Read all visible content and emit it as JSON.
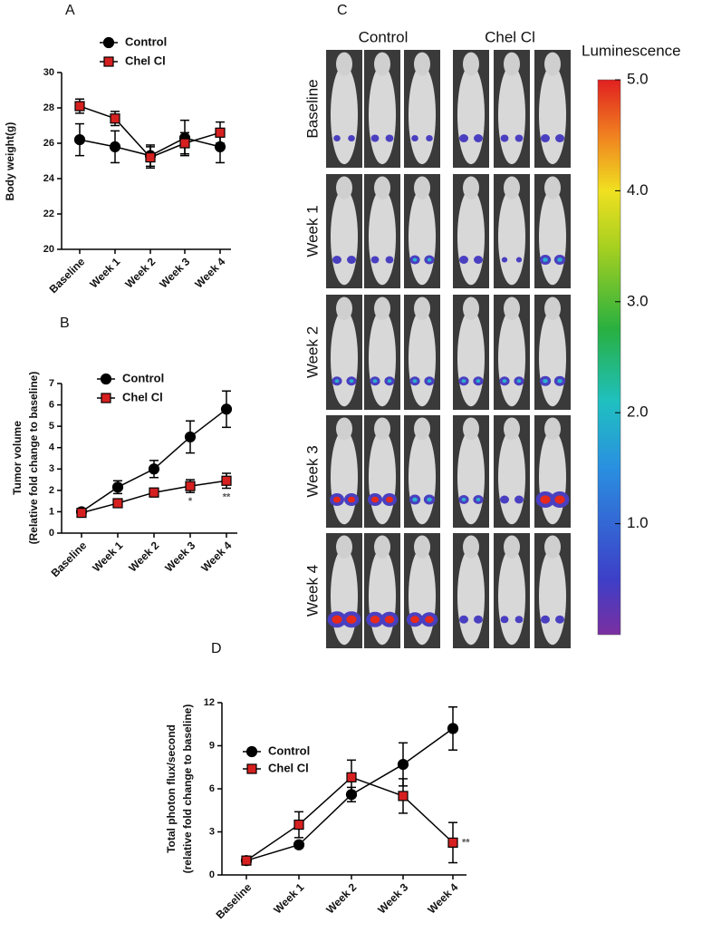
{
  "chart_data": [
    {
      "type": "line",
      "label": "A",
      "ylabel": [
        "Body weight(g)"
      ],
      "categories": [
        "Baseline",
        "Week 1",
        "Week 2",
        "Week 3",
        "Week 4"
      ],
      "ylim": [
        20,
        30
      ],
      "yticks": [
        20,
        22,
        24,
        26,
        28,
        30
      ],
      "series": [
        {
          "name": "Control",
          "color": "#000000",
          "marker": "circle",
          "values": [
            26.2,
            25.8,
            25.3,
            26.3,
            25.8
          ],
          "errors": [
            0.9,
            0.9,
            0.6,
            1.0,
            0.9
          ]
        },
        {
          "name": "Chel Cl",
          "color": "#d62020",
          "marker": "square",
          "values": [
            28.1,
            27.4,
            25.2,
            26.0,
            26.6
          ],
          "errors": [
            0.4,
            0.4,
            0.6,
            0.6,
            0.6
          ]
        }
      ]
    },
    {
      "type": "line",
      "label": "B",
      "ylabel": [
        "Tumor volume",
        "(Relative fold change to baseline)"
      ],
      "categories": [
        "Baseline",
        "Week 1",
        "Week 2",
        "Week 3",
        "Week 4"
      ],
      "ylim": [
        0,
        7
      ],
      "yticks": [
        0,
        1,
        2,
        3,
        4,
        5,
        6,
        7
      ],
      "series": [
        {
          "name": "Control",
          "color": "#000000",
          "marker": "circle",
          "values": [
            1.0,
            2.15,
            3.0,
            4.5,
            5.8
          ],
          "errors": [
            0.15,
            0.3,
            0.4,
            0.75,
            0.85
          ]
        },
        {
          "name": "Chel Cl",
          "color": "#d62020",
          "marker": "square",
          "values": [
            0.95,
            1.4,
            1.9,
            2.2,
            2.45
          ],
          "errors": [
            0.1,
            0.12,
            0.2,
            0.3,
            0.35
          ],
          "significance": [
            null,
            null,
            null,
            "*",
            "**"
          ]
        }
      ]
    },
    {
      "type": "image-grid",
      "label": "C",
      "columns": [
        "Control",
        "Chel Cl"
      ],
      "rows": [
        "Baseline",
        "Week 1",
        "Week 2",
        "Week 3",
        "Week 4"
      ],
      "colorbar_label": "Luminescence",
      "clim": [
        0,
        5
      ],
      "cticks": [
        {
          "value": 1,
          "label": "1.0"
        },
        {
          "value": 2,
          "label": "2.0"
        },
        {
          "value": 3,
          "label": "3.0"
        },
        {
          "value": 4,
          "label": "4.0"
        },
        {
          "value": 5,
          "label": "5.0"
        }
      ]
    },
    {
      "type": "line",
      "label": "D",
      "ylabel": [
        "Total photon flux/second",
        "(relative fold change to baseline)"
      ],
      "categories": [
        "Baseline",
        "Week 1",
        "Week 2",
        "Week 3",
        "Week 4"
      ],
      "ylim": [
        0,
        12
      ],
      "yticks": [
        0,
        3,
        6,
        9,
        12
      ],
      "series": [
        {
          "name": "Control",
          "color": "#000000",
          "marker": "circle",
          "values": [
            1.0,
            2.1,
            5.6,
            7.7,
            10.2
          ],
          "errors": [
            0.1,
            0.2,
            0.5,
            1.5,
            1.5
          ]
        },
        {
          "name": "Chel Cl",
          "color": "#d62020",
          "marker": "square",
          "values": [
            1.0,
            3.5,
            6.8,
            5.5,
            2.25
          ],
          "errors": [
            0.1,
            0.9,
            1.2,
            1.2,
            1.4
          ],
          "significance": [
            null,
            null,
            null,
            null,
            "**"
          ]
        }
      ]
    }
  ]
}
